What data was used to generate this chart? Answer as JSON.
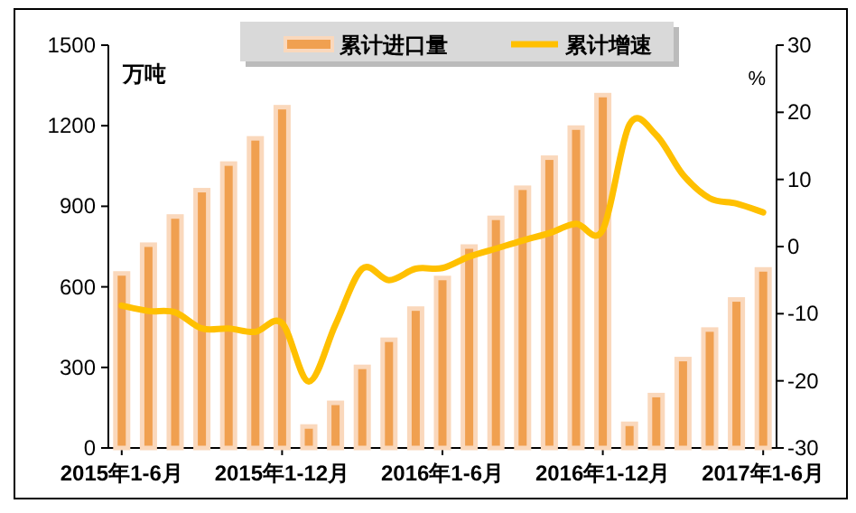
{
  "chart_data": {
    "type": "bar",
    "categories": [
      "2015年1-6月",
      null,
      null,
      null,
      null,
      null,
      "2015年1-12月",
      null,
      null,
      null,
      null,
      null,
      "2016年1-6月",
      null,
      null,
      null,
      null,
      null,
      "2016年1-12月",
      null,
      null,
      null,
      null,
      null,
      "2017年1-6月"
    ],
    "series": [
      {
        "name": "累计进口量",
        "color": "#f0a050",
        "values": [
          650,
          757,
          862,
          960,
          1059,
          1153,
          1269,
          80,
          168,
          302,
          403,
          519,
          633,
          750,
          857,
          969,
          1081,
          1193,
          1314,
          90,
          197,
          331,
          441,
          553,
          665
        ]
      },
      {
        "name": "累计增速",
        "type": "line",
        "axis": "y2",
        "color": "#ffc000",
        "values": [
          -8.8,
          -9.6,
          -9.8,
          -12.2,
          -12.2,
          -12.7,
          -11.4,
          -20.1,
          -11.6,
          -3.3,
          -5.0,
          -3.3,
          -3.2,
          -1.5,
          -0.3,
          0.9,
          2.0,
          3.4,
          2.5,
          18.2,
          16.6,
          10.7,
          7.2,
          6.4,
          5.1
        ]
      }
    ],
    "ylabel": "万吨",
    "y2label": "%",
    "ylim": [
      0,
      1500
    ],
    "yticks": [
      0,
      300,
      600,
      900,
      1200,
      1500
    ],
    "y2lim": [
      -30,
      30
    ],
    "y2ticks": [
      -30,
      -20,
      -10,
      0,
      10,
      20,
      30
    ],
    "grid": false,
    "legend": "top",
    "marker": "none",
    "line_style": "solid"
  }
}
